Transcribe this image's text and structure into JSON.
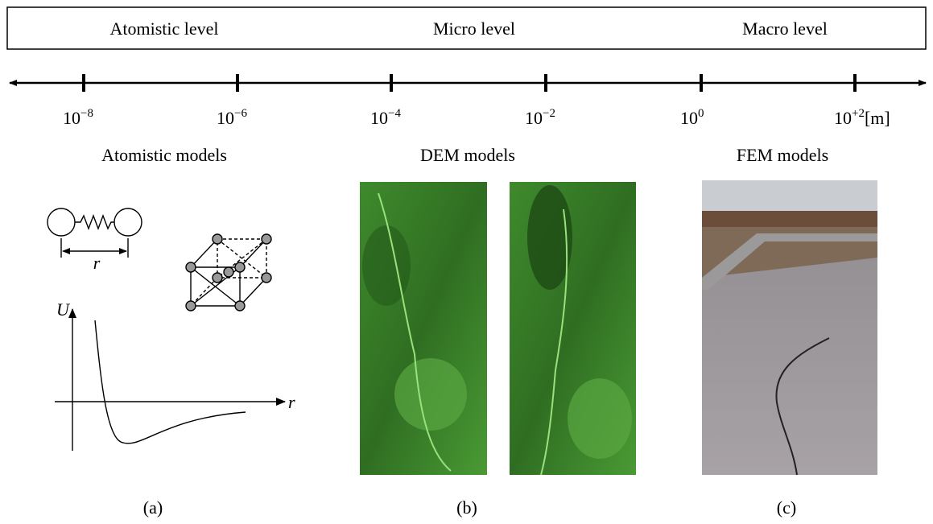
{
  "levels": [
    "Atomistic level",
    "Micro level",
    "Macro level"
  ],
  "scale": {
    "ticks": [
      {
        "base": "10",
        "exponent": "−8"
      },
      {
        "base": "10",
        "exponent": "−6"
      },
      {
        "base": "10",
        "exponent": "−4"
      },
      {
        "base": "10",
        "exponent": "−2"
      },
      {
        "base": "10",
        "exponent": "0"
      },
      {
        "base": "10",
        "exponent": "+2"
      }
    ],
    "unit": "[m]"
  },
  "models": [
    "Atomistic models",
    "DEM models",
    "FEM models"
  ],
  "diagram_labels": {
    "spring_distance": "r",
    "potential_axis": "U",
    "distance_axis": "r"
  },
  "panels": [
    "(a)",
    "(b)",
    "(c)"
  ]
}
